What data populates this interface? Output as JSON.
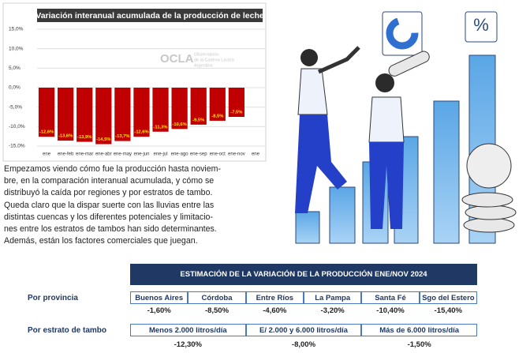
{
  "chart_data": {
    "type": "bar",
    "title": "Variación interanual acumulada de la producción de leche",
    "watermark": "OCLA",
    "watermark_sub": [
      "Observatorio",
      "de la Cadena Láctea",
      "Argentina"
    ],
    "categories": [
      "ene",
      "ene-feb",
      "ene-mar",
      "ene-abr",
      "ene-may",
      "ene-jun",
      "ene-jul",
      "ene-ago",
      "ene-sep",
      "ene-oct",
      "ene-nov",
      "ene"
    ],
    "values": [
      -12.6,
      -13.6,
      -13.9,
      -14.5,
      -13.7,
      -12.6,
      -11.3,
      -10.6,
      -9.5,
      -8.5,
      -7.5,
      null
    ],
    "value_labels": [
      "-12,6%",
      "-13,6%",
      "-13,9%",
      "-14,5%",
      "-13,7%",
      "-12,6%",
      "-11,3%",
      "-10,6%",
      "-9,5%",
      "-8,5%",
      "-7,5%",
      null
    ],
    "color": "#c00000",
    "label_color": "#ffe600",
    "ylim": [
      -15,
      15
    ],
    "yticks": [
      {
        "value": 15,
        "label": "15,0%"
      },
      {
        "value": 10,
        "label": "10,0%"
      },
      {
        "value": 5,
        "label": "5,0%"
      },
      {
        "value": 0,
        "label": "0,0%"
      },
      {
        "value": -5,
        "label": "-5,0%"
      },
      {
        "value": -10,
        "label": "-10,0%"
      },
      {
        "value": -15,
        "label": "-15,0%"
      }
    ],
    "grid": true
  },
  "paragraph_lines": [
    "Empezamos viendo cómo fue la producción hasta noviem-",
    "bre, en la comparación interanual acumulada, y cómo se",
    "distribuyó la caída por regiones y por estratos de tambo.",
    "Queda claro que la dispar suerte con las lluvias entre las",
    "distintas cuencas y los diferentes potenciales y limitacio-",
    "nes entre los estratos de tambos han sido determinantes.",
    "Además, están los factores comerciales que juegan."
  ],
  "icon_label": "%",
  "table": {
    "title": "ESTIMACIÓN DE LA VARIACIÓN DE LA PRODUCCIÓN ENE/NOV 2024",
    "province_label": "Por provincia",
    "provinces": [
      "Buenos Aires",
      "Córdoba",
      "Entre Ríos",
      "La Pampa",
      "Santa Fé",
      "Sgo del Estero"
    ],
    "province_values": [
      "-1,60%",
      "-8,50%",
      "-4,60%",
      "-3,20%",
      "-10,40%",
      "-15,40%"
    ],
    "stratum_label": "Por estrato de tambo",
    "strata": [
      "Menos 2.000 litros/día",
      "E/ 2.000 y 6.000 litros/día",
      "Más de 6.000 litros/día"
    ],
    "strata_values": [
      "-12,30%",
      "-8,00%",
      "-1,50%"
    ]
  }
}
